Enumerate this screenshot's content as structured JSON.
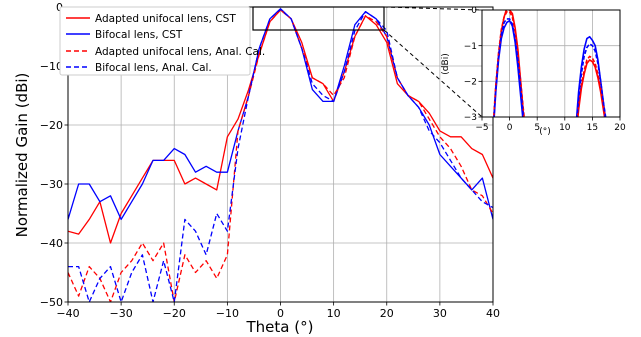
{
  "chart_data": [
    {
      "type": "line",
      "xlabel": "Theta (°)",
      "ylabel": "Normalized Gain (dBi)",
      "xlim": [
        -40,
        40
      ],
      "ylim": [
        -50,
        0
      ],
      "xticks": [
        "−40",
        "−30",
        "−20",
        "−10",
        "0",
        "10",
        "20",
        "30",
        "40"
      ],
      "yticks": [
        "0",
        "−10",
        "−20",
        "−30",
        "−40",
        "−50"
      ],
      "grid": true,
      "legend_position": "top-left",
      "series": [
        {
          "name": "Adapted unifocal lens, CST",
          "color": "#ff0000",
          "dash": "solid",
          "x": [
            -40,
            -38,
            -36,
            -34,
            -32,
            -30,
            -28,
            -26,
            -24,
            -22,
            -20,
            -18,
            -16,
            -14,
            -12,
            -10,
            -8,
            -6,
            -4,
            -2,
            0,
            2,
            4,
            6,
            8,
            10,
            12,
            14,
            16,
            18,
            20,
            22,
            24,
            26,
            28,
            30,
            32,
            34,
            36,
            38,
            40
          ],
          "y": [
            -38,
            -38.5,
            -36,
            -33,
            -40,
            -35,
            -32,
            -29,
            -26,
            -26,
            -26,
            -30,
            -29,
            -30,
            -31,
            -22,
            -19,
            -14,
            -8,
            -2.5,
            -0.5,
            -2,
            -6,
            -12,
            -13,
            -16,
            -11,
            -5,
            -1.5,
            -3,
            -6,
            -13,
            -15,
            -16,
            -18,
            -21,
            -22,
            -22,
            -24,
            -25,
            -29
          ]
        },
        {
          "name": "Bifocal lens, CST",
          "color": "#0000ff",
          "dash": "solid",
          "x": [
            -40,
            -38,
            -36,
            -34,
            -32,
            -30,
            -28,
            -26,
            -24,
            -22,
            -20,
            -18,
            -16,
            -14,
            -12,
            -10,
            -8,
            -6,
            -4,
            -2,
            0,
            2,
            4,
            6,
            8,
            10,
            12,
            14,
            16,
            18,
            20,
            22,
            24,
            26,
            28,
            30,
            32,
            34,
            36,
            38,
            40
          ],
          "y": [
            -36,
            -30,
            -30,
            -33,
            -32,
            -36,
            -33,
            -30,
            -26,
            -26,
            -24,
            -25,
            -28,
            -27,
            -28,
            -28,
            -21,
            -15,
            -7,
            -2,
            -0.3,
            -2,
            -7,
            -14,
            -16,
            -16,
            -10,
            -3,
            -0.8,
            -2,
            -5,
            -12,
            -15,
            -17,
            -20,
            -25,
            -27,
            -29,
            -31,
            -29,
            -36
          ]
        },
        {
          "name": "Adapted unifocal lens, Anal. Cal.",
          "color": "#ff0000",
          "dash": "dashed",
          "x": [
            -40,
            -38,
            -36,
            -34,
            -32,
            -30,
            -28,
            -26,
            -24,
            -22,
            -20,
            -18,
            -16,
            -14,
            -12,
            -10,
            -8,
            -6,
            -4,
            -2,
            0,
            2,
            4,
            6,
            8,
            10,
            12,
            14,
            16,
            18,
            20,
            22,
            24,
            26,
            28,
            30,
            32,
            34,
            36,
            38,
            40
          ],
          "y": [
            -45,
            -49,
            -44,
            -46,
            -50,
            -45,
            -43,
            -40,
            -43,
            -40,
            -50,
            -42,
            -45,
            -43,
            -46,
            -42,
            -21,
            -15,
            -8,
            -2.5,
            -0.5,
            -2,
            -7,
            -12,
            -13,
            -15,
            -12,
            -5,
            -1.5,
            -2.5,
            -5,
            -12,
            -15,
            -16,
            -19,
            -22,
            -24,
            -27,
            -31,
            -32,
            -35
          ]
        },
        {
          "name": "Bifocal lens, Anal. Cal.",
          "color": "#0000ff",
          "dash": "dashed",
          "x": [
            -40,
            -38,
            -36,
            -34,
            -32,
            -30,
            -28,
            -26,
            -24,
            -22,
            -20,
            -18,
            -16,
            -14,
            -12,
            -10,
            -8,
            -6,
            -4,
            -2,
            0,
            2,
            4,
            6,
            8,
            10,
            12,
            14,
            16,
            18,
            20,
            22,
            24,
            26,
            28,
            30,
            32,
            34,
            36,
            38,
            40
          ],
          "y": [
            -44,
            -44,
            -50,
            -46,
            -44,
            -50,
            -45,
            -42,
            -50,
            -43,
            -50,
            -36,
            -38,
            -42,
            -35,
            -38,
            -24,
            -15,
            -7,
            -2,
            -0.4,
            -2,
            -7,
            -13,
            -15,
            -16,
            -11,
            -4,
            -0.8,
            -2,
            -4,
            -12,
            -15,
            -17,
            -21,
            -23,
            -26,
            -29,
            -31,
            -33,
            -34
          ]
        }
      ]
    },
    {
      "type": "line",
      "xlabel": "(°)",
      "ylabel": "(dBi)",
      "xlim": [
        -5,
        20
      ],
      "ylim": [
        -3,
        0
      ],
      "xticks": [
        "−5",
        "0",
        "5",
        "10",
        "15",
        "20"
      ],
      "yticks": [
        "0",
        "−1",
        "−2",
        "−3"
      ],
      "grid": true,
      "series": [
        {
          "color": "#ff0000",
          "dash": "solid",
          "x": [
            -3.0,
            -2.5,
            -2.0,
            -1.5,
            -1.0,
            -0.5,
            0.0,
            0.5,
            1.0,
            1.5,
            2.0,
            2.5,
            3.0,
            12.0,
            12.5,
            13.0,
            13.5,
            14.0,
            14.5,
            15.0,
            15.5,
            16.0,
            16.5,
            17.0,
            17.5,
            18.0
          ],
          "y": [
            -3.4,
            -2.2,
            -1.3,
            -0.6,
            -0.2,
            0.05,
            0.0,
            -0.1,
            -0.5,
            -1.1,
            -2.0,
            -2.9,
            -3.6,
            -3.6,
            -2.8,
            -2.2,
            -1.8,
            -1.5,
            -1.4,
            -1.45,
            -1.6,
            -1.9,
            -2.3,
            -2.8,
            -3.3,
            -3.8
          ]
        },
        {
          "color": "#0000ff",
          "dash": "solid",
          "x": [
            -3.0,
            -2.5,
            -2.0,
            -1.5,
            -1.0,
            -0.5,
            0.0,
            0.5,
            1.0,
            1.5,
            2.0,
            2.5,
            3.0,
            12.0,
            12.5,
            13.0,
            13.5,
            14.0,
            14.5,
            15.0,
            15.5,
            16.0,
            16.5,
            17.0,
            17.5,
            18.0
          ],
          "y": [
            -3.5,
            -2.3,
            -1.4,
            -0.8,
            -0.5,
            -0.35,
            -0.3,
            -0.45,
            -0.9,
            -1.6,
            -2.4,
            -3.2,
            -3.8,
            -3.3,
            -2.3,
            -1.6,
            -1.1,
            -0.8,
            -0.75,
            -0.85,
            -1.0,
            -1.4,
            -2.0,
            -2.6,
            -3.2,
            -3.7
          ]
        },
        {
          "color": "#ff0000",
          "dash": "dashed",
          "x": [
            -3.0,
            -2.5,
            -2.0,
            -1.5,
            -1.0,
            -0.5,
            0.0,
            0.5,
            1.0,
            1.5,
            2.0,
            2.5,
            3.0,
            12.0,
            12.5,
            13.0,
            13.5,
            14.0,
            14.5,
            15.0,
            15.5,
            16.0,
            16.5,
            17.0,
            17.5,
            18.0
          ],
          "y": [
            -3.3,
            -2.1,
            -1.2,
            -0.55,
            -0.2,
            -0.05,
            -0.05,
            -0.2,
            -0.6,
            -1.2,
            -2.0,
            -2.8,
            -3.5,
            -3.5,
            -2.7,
            -2.1,
            -1.7,
            -1.4,
            -1.3,
            -1.35,
            -1.5,
            -1.8,
            -2.2,
            -2.7,
            -3.2,
            -3.7
          ]
        },
        {
          "color": "#0000ff",
          "dash": "dashed",
          "x": [
            -3.0,
            -2.5,
            -2.0,
            -1.5,
            -1.0,
            -0.5,
            0.0,
            0.5,
            1.0,
            1.5,
            2.0,
            2.5,
            3.0,
            12.0,
            12.5,
            13.0,
            13.5,
            14.0,
            14.5,
            15.0,
            15.5,
            16.0,
            16.5,
            17.0,
            17.5,
            18.0
          ],
          "y": [
            -3.4,
            -2.2,
            -1.3,
            -0.7,
            -0.35,
            -0.25,
            -0.25,
            -0.4,
            -0.8,
            -1.4,
            -2.2,
            -3.0,
            -3.7,
            -3.4,
            -2.5,
            -1.8,
            -1.3,
            -1.05,
            -0.95,
            -1.0,
            -1.15,
            -1.5,
            -2.0,
            -2.6,
            -3.1,
            -3.6
          ]
        }
      ]
    }
  ]
}
